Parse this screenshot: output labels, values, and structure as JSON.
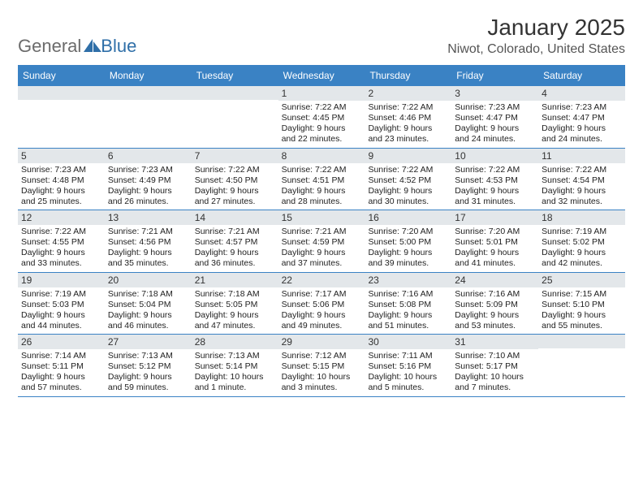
{
  "brand": {
    "text1": "General",
    "text2": "Blue",
    "text1_color": "#6b6b6b",
    "text2_color": "#2f6fa8",
    "sail_color": "#2f6fa8"
  },
  "title": "January 2025",
  "location": "Niwot, Colorado, United States",
  "colors": {
    "header_bg": "#3a82c4",
    "header_text": "#ffffff",
    "daynum_bg": "#e3e7ea",
    "border": "#3a82c4",
    "body_text": "#222222"
  },
  "weekdays": [
    "Sunday",
    "Monday",
    "Tuesday",
    "Wednesday",
    "Thursday",
    "Friday",
    "Saturday"
  ],
  "first_weekday_index": 3,
  "days": [
    {
      "n": 1,
      "sunrise": "7:22 AM",
      "sunset": "4:45 PM",
      "dl_h": 9,
      "dl_m": 22
    },
    {
      "n": 2,
      "sunrise": "7:22 AM",
      "sunset": "4:46 PM",
      "dl_h": 9,
      "dl_m": 23
    },
    {
      "n": 3,
      "sunrise": "7:23 AM",
      "sunset": "4:47 PM",
      "dl_h": 9,
      "dl_m": 24
    },
    {
      "n": 4,
      "sunrise": "7:23 AM",
      "sunset": "4:47 PM",
      "dl_h": 9,
      "dl_m": 24
    },
    {
      "n": 5,
      "sunrise": "7:23 AM",
      "sunset": "4:48 PM",
      "dl_h": 9,
      "dl_m": 25
    },
    {
      "n": 6,
      "sunrise": "7:23 AM",
      "sunset": "4:49 PM",
      "dl_h": 9,
      "dl_m": 26
    },
    {
      "n": 7,
      "sunrise": "7:22 AM",
      "sunset": "4:50 PM",
      "dl_h": 9,
      "dl_m": 27
    },
    {
      "n": 8,
      "sunrise": "7:22 AM",
      "sunset": "4:51 PM",
      "dl_h": 9,
      "dl_m": 28
    },
    {
      "n": 9,
      "sunrise": "7:22 AM",
      "sunset": "4:52 PM",
      "dl_h": 9,
      "dl_m": 30
    },
    {
      "n": 10,
      "sunrise": "7:22 AM",
      "sunset": "4:53 PM",
      "dl_h": 9,
      "dl_m": 31
    },
    {
      "n": 11,
      "sunrise": "7:22 AM",
      "sunset": "4:54 PM",
      "dl_h": 9,
      "dl_m": 32
    },
    {
      "n": 12,
      "sunrise": "7:22 AM",
      "sunset": "4:55 PM",
      "dl_h": 9,
      "dl_m": 33
    },
    {
      "n": 13,
      "sunrise": "7:21 AM",
      "sunset": "4:56 PM",
      "dl_h": 9,
      "dl_m": 35
    },
    {
      "n": 14,
      "sunrise": "7:21 AM",
      "sunset": "4:57 PM",
      "dl_h": 9,
      "dl_m": 36
    },
    {
      "n": 15,
      "sunrise": "7:21 AM",
      "sunset": "4:59 PM",
      "dl_h": 9,
      "dl_m": 37
    },
    {
      "n": 16,
      "sunrise": "7:20 AM",
      "sunset": "5:00 PM",
      "dl_h": 9,
      "dl_m": 39
    },
    {
      "n": 17,
      "sunrise": "7:20 AM",
      "sunset": "5:01 PM",
      "dl_h": 9,
      "dl_m": 41
    },
    {
      "n": 18,
      "sunrise": "7:19 AM",
      "sunset": "5:02 PM",
      "dl_h": 9,
      "dl_m": 42
    },
    {
      "n": 19,
      "sunrise": "7:19 AM",
      "sunset": "5:03 PM",
      "dl_h": 9,
      "dl_m": 44
    },
    {
      "n": 20,
      "sunrise": "7:18 AM",
      "sunset": "5:04 PM",
      "dl_h": 9,
      "dl_m": 46
    },
    {
      "n": 21,
      "sunrise": "7:18 AM",
      "sunset": "5:05 PM",
      "dl_h": 9,
      "dl_m": 47
    },
    {
      "n": 22,
      "sunrise": "7:17 AM",
      "sunset": "5:06 PM",
      "dl_h": 9,
      "dl_m": 49
    },
    {
      "n": 23,
      "sunrise": "7:16 AM",
      "sunset": "5:08 PM",
      "dl_h": 9,
      "dl_m": 51
    },
    {
      "n": 24,
      "sunrise": "7:16 AM",
      "sunset": "5:09 PM",
      "dl_h": 9,
      "dl_m": 53
    },
    {
      "n": 25,
      "sunrise": "7:15 AM",
      "sunset": "5:10 PM",
      "dl_h": 9,
      "dl_m": 55
    },
    {
      "n": 26,
      "sunrise": "7:14 AM",
      "sunset": "5:11 PM",
      "dl_h": 9,
      "dl_m": 57
    },
    {
      "n": 27,
      "sunrise": "7:13 AM",
      "sunset": "5:12 PM",
      "dl_h": 9,
      "dl_m": 59
    },
    {
      "n": 28,
      "sunrise": "7:13 AM",
      "sunset": "5:14 PM",
      "dl_h": 10,
      "dl_m": 1
    },
    {
      "n": 29,
      "sunrise": "7:12 AM",
      "sunset": "5:15 PM",
      "dl_h": 10,
      "dl_m": 3
    },
    {
      "n": 30,
      "sunrise": "7:11 AM",
      "sunset": "5:16 PM",
      "dl_h": 10,
      "dl_m": 5
    },
    {
      "n": 31,
      "sunrise": "7:10 AM",
      "sunset": "5:17 PM",
      "dl_h": 10,
      "dl_m": 7
    }
  ],
  "labels": {
    "sunrise": "Sunrise:",
    "sunset": "Sunset:",
    "daylight": "Daylight:",
    "hours": "hours",
    "and": "and",
    "minute_singular": "minute.",
    "minutes": "minutes."
  }
}
